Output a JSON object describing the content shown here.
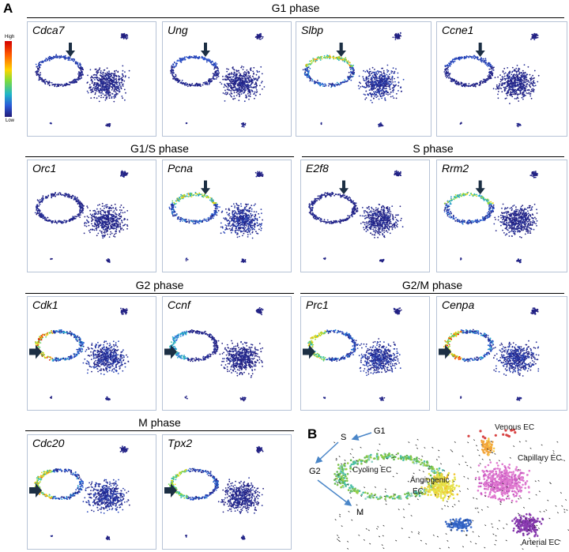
{
  "figure": {
    "panel_a": "A",
    "panel_b": "B",
    "legend": {
      "high": "High",
      "low": "Low"
    },
    "groups": [
      {
        "phase": "G1 phase",
        "genes": [
          "Cdca7",
          "Ung",
          "Slbp",
          "Ccne1"
        ]
      },
      {
        "phase": "G1/S phase",
        "genes": [
          "Orc1",
          "Pcna"
        ]
      },
      {
        "phase": "S phase",
        "genes": [
          "E2f8",
          "Rrm2"
        ]
      },
      {
        "phase": "G2 phase",
        "genes": [
          "Cdk1",
          "Ccnf"
        ]
      },
      {
        "phase": "G2/M phase",
        "genes": [
          "Prc1",
          "Cenpa"
        ]
      },
      {
        "phase": "M phase",
        "genes": [
          "Cdc20",
          "Tpx2"
        ]
      }
    ],
    "panel_b_cycle": {
      "s": "S",
      "g1": "G1",
      "g2": "G2",
      "m": "M"
    },
    "panel_b_clusters": {
      "cycling": "Cycling EC",
      "angiogenic_1": "Angiogenic",
      "angiogenic_2": "EC",
      "venous": "Venous EC",
      "capillary": "Capillary EC",
      "arterial": "Arterial EC"
    },
    "colors": {
      "high": "#d40000",
      "low": "#221a78",
      "frame": "#b7c3d6"
    }
  }
}
